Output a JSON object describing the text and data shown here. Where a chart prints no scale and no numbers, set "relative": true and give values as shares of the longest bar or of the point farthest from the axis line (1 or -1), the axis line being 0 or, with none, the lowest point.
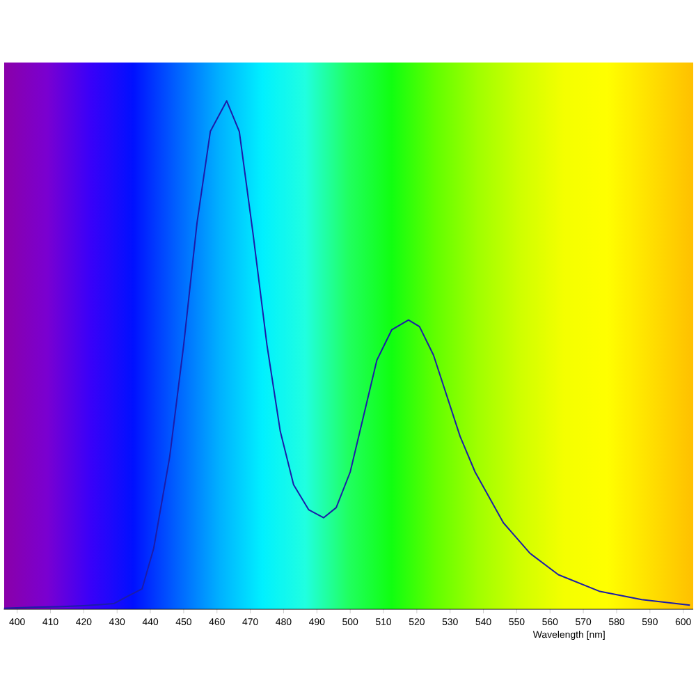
{
  "chart_data": {
    "type": "line",
    "relative": true,
    "xlabel": "Wavelength [nm]",
    "tick_labels": "x",
    "grid": false,
    "marker": "none",
    "line_style": "solid",
    "color": "#1c1ca8",
    "xlim": [
      396,
      603
    ],
    "xticks": [
      400,
      410,
      420,
      430,
      440,
      450,
      460,
      470,
      480,
      490,
      500,
      510,
      520,
      530,
      540,
      550,
      560,
      570,
      580,
      590,
      600
    ],
    "x": [
      396,
      400,
      405,
      412.5,
      420,
      425,
      429,
      433,
      437.5,
      441,
      445.8,
      450,
      454,
      458,
      462.9,
      466.7,
      470.8,
      475,
      479,
      483,
      487.5,
      492,
      495.8,
      500,
      504,
      508,
      512.5,
      517.5,
      520.8,
      525,
      529,
      533,
      537.5,
      546,
      554,
      562.5,
      575,
      587.5,
      602
    ],
    "values": [
      0.002,
      0.003,
      0.004,
      0.005,
      0.007,
      0.009,
      0.011,
      0.025,
      0.04,
      0.12,
      0.3,
      0.52,
      0.76,
      0.94,
      1.0,
      0.94,
      0.74,
      0.52,
      0.35,
      0.245,
      0.196,
      0.18,
      0.2,
      0.27,
      0.38,
      0.49,
      0.55,
      0.569,
      0.556,
      0.5,
      0.42,
      0.34,
      0.27,
      0.17,
      0.11,
      0.068,
      0.035,
      0.019,
      0.008
    ]
  }
}
